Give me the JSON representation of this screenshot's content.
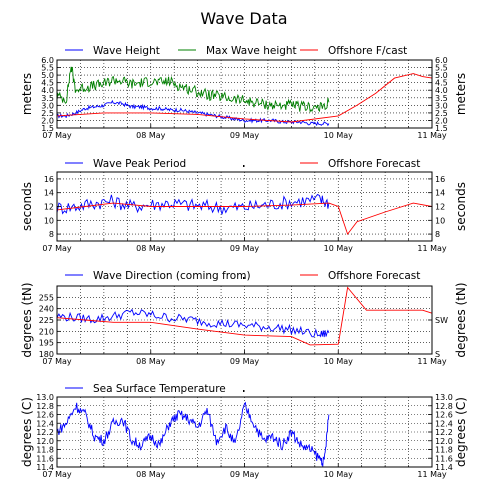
{
  "figure_title": "Wave Data",
  "chart_data": [
    {
      "type": "line",
      "xlabel": "",
      "ylabel": "meters",
      "ylabel_right": "meters",
      "xlim": [
        0,
        4
      ],
      "x_ticks": [
        {
          "v": 0,
          "label": "07 May"
        },
        {
          "v": 1,
          "label": "08 May"
        },
        {
          "v": 2,
          "label": "09 May"
        },
        {
          "v": 3,
          "label": "10 May"
        },
        {
          "v": 4,
          "label": "11 May"
        }
      ],
      "ylim": [
        1.5,
        6.0
      ],
      "y_ticks": [
        {
          "v": 1.5,
          "label": "1.5"
        },
        {
          "v": 2.0,
          "label": "2.0"
        },
        {
          "v": 2.5,
          "label": "2.5"
        },
        {
          "v": 3.0,
          "label": "3.0"
        },
        {
          "v": 3.5,
          "label": "3.5"
        },
        {
          "v": 4.0,
          "label": "4.0"
        },
        {
          "v": 4.5,
          "label": "4.5"
        },
        {
          "v": 5.0,
          "label": "5.0"
        },
        {
          "v": 5.5,
          "label": "5.5"
        },
        {
          "v": 6.0,
          "label": "6.0"
        }
      ],
      "y_ticks_right": [
        {
          "v": 1.5,
          "label": "1.5"
        },
        {
          "v": 2.0,
          "label": "2.0"
        },
        {
          "v": 2.5,
          "label": "2.5"
        },
        {
          "v": 3.0,
          "label": "3.0"
        },
        {
          "v": 3.5,
          "label": "3.5"
        },
        {
          "v": 4.0,
          "label": "4.0"
        },
        {
          "v": 4.5,
          "label": "4.5"
        },
        {
          "v": 5.0,
          "label": "5.0"
        },
        {
          "v": 5.5,
          "label": "5.5"
        },
        {
          "v": 6.0,
          "label": "6.0"
        }
      ],
      "grid": true,
      "legend": "top",
      "series": [
        {
          "name": "Wave Height",
          "color": "#0000ff",
          "x": [
            0,
            0.1,
            0.2,
            0.3,
            0.4,
            0.5,
            0.6,
            0.7,
            0.8,
            0.9,
            1.0,
            1.1,
            1.2,
            1.3,
            1.4,
            1.5,
            1.6,
            1.7,
            1.8,
            1.9,
            2.0,
            2.1,
            2.2,
            2.3,
            2.4,
            2.5,
            2.6,
            2.7,
            2.8,
            2.9
          ],
          "y": [
            2.3,
            2.3,
            2.5,
            2.8,
            2.9,
            3.0,
            3.2,
            3.1,
            2.9,
            2.9,
            2.8,
            2.8,
            2.7,
            2.7,
            2.6,
            2.5,
            2.4,
            2.3,
            2.2,
            2.1,
            2.0,
            2.0,
            2.0,
            2.0,
            1.9,
            1.9,
            1.9,
            1.8,
            1.8,
            1.8
          ],
          "noise": 0.12
        },
        {
          "name": "Max Wave height",
          "color": "#008000",
          "x": [
            0,
            0.1,
            0.15,
            0.2,
            0.3,
            0.4,
            0.5,
            0.6,
            0.7,
            0.8,
            0.9,
            1.0,
            1.1,
            1.2,
            1.3,
            1.4,
            1.5,
            1.6,
            1.7,
            1.8,
            1.9,
            2.0,
            2.1,
            2.2,
            2.3,
            2.4,
            2.5,
            2.6,
            2.7,
            2.8,
            2.9
          ],
          "y": [
            3.6,
            3.4,
            5.6,
            4.0,
            4.2,
            4.3,
            4.4,
            4.7,
            4.6,
            4.4,
            4.5,
            4.6,
            4.5,
            4.6,
            4.3,
            4.1,
            3.9,
            3.7,
            3.6,
            3.5,
            3.4,
            3.3,
            3.2,
            3.1,
            3.0,
            3.0,
            3.0,
            2.9,
            2.9,
            2.8,
            3.2
          ],
          "noise": 0.35
        },
        {
          "name": "Offshore F/cast",
          "color": "#ff0000",
          "x": [
            0,
            0.5,
            1.0,
            1.5,
            2.0,
            2.5,
            3.0,
            3.2,
            3.4,
            3.6,
            3.8,
            3.9,
            4.0
          ],
          "y": [
            2.3,
            2.5,
            2.5,
            2.4,
            2.1,
            1.9,
            2.3,
            3.0,
            3.8,
            4.8,
            5.1,
            4.9,
            4.8
          ],
          "noise": 0
        }
      ]
    },
    {
      "type": "line",
      "xlabel": "",
      "ylabel": "seconds",
      "ylabel_right": "seconds",
      "xlim": [
        0,
        4
      ],
      "x_ticks": [
        {
          "v": 0,
          "label": "07 May"
        },
        {
          "v": 1,
          "label": "08 May"
        },
        {
          "v": 2,
          "label": "09 May"
        },
        {
          "v": 3,
          "label": "10 May"
        },
        {
          "v": 4,
          "label": "11 May"
        }
      ],
      "ylim": [
        7,
        17
      ],
      "y_ticks": [
        {
          "v": 8,
          "label": "8"
        },
        {
          "v": 10,
          "label": "10"
        },
        {
          "v": 12,
          "label": "12"
        },
        {
          "v": 14,
          "label": "14"
        },
        {
          "v": 16,
          "label": "16"
        }
      ],
      "y_ticks_right": [
        {
          "v": 8,
          "label": "8"
        },
        {
          "v": 10,
          "label": "10"
        },
        {
          "v": 12,
          "label": "12"
        },
        {
          "v": 14,
          "label": "14"
        },
        {
          "v": 16,
          "label": "16"
        }
      ],
      "grid": true,
      "legend": "top",
      "series": [
        {
          "name": "Wave Peak Period",
          "color": "#0000ff",
          "x": [
            0,
            0.2,
            0.4,
            0.6,
            0.8,
            1.0,
            1.2,
            1.4,
            1.6,
            1.8,
            2.0,
            2.2,
            2.4,
            2.6,
            2.8,
            2.9
          ],
          "y": [
            11.8,
            12.0,
            12.5,
            12.8,
            12.0,
            12.3,
            12.5,
            12.2,
            12.0,
            11.8,
            11.9,
            12.2,
            12.5,
            12.8,
            13.0,
            12.5
          ],
          "noise": 1.0
        },
        {
          "name": "",
          "color": "#000000",
          "x": [],
          "y": [],
          "noise": 0
        },
        {
          "name": "Offshore Forecast",
          "color": "#ff0000",
          "x": [
            0,
            0.3,
            0.6,
            1.0,
            1.5,
            2.0,
            2.5,
            2.9,
            3.0,
            3.1,
            3.2,
            3.5,
            3.8,
            4.0
          ],
          "y": [
            11.5,
            12.0,
            12.5,
            12.0,
            12.0,
            12.0,
            12.2,
            12.5,
            12.0,
            8.0,
            9.8,
            11.2,
            12.5,
            12.0
          ],
          "noise": 0
        }
      ]
    },
    {
      "type": "line",
      "xlabel": "",
      "ylabel": "degrees (tN)",
      "ylabel_right": "degrees (tN)",
      "xlim": [
        0,
        4
      ],
      "x_ticks": [
        {
          "v": 0,
          "label": "07 May"
        },
        {
          "v": 1,
          "label": "08 May"
        },
        {
          "v": 2,
          "label": "09 May"
        },
        {
          "v": 3,
          "label": "10 May"
        },
        {
          "v": 4,
          "label": "11 May"
        }
      ],
      "ylim": [
        180,
        270
      ],
      "y_ticks": [
        {
          "v": 180,
          "label": "180"
        },
        {
          "v": 195,
          "label": "195"
        },
        {
          "v": 210,
          "label": "210"
        },
        {
          "v": 225,
          "label": "225"
        },
        {
          "v": 240,
          "label": "240"
        },
        {
          "v": 255,
          "label": "255"
        }
      ],
      "y_ticks_right": [
        {
          "v": 225,
          "label": "SW"
        },
        {
          "v": 180,
          "label": "S"
        }
      ],
      "grid": true,
      "legend": "top",
      "series": [
        {
          "name": "Wave Direction (coming from)",
          "color": "#0000ff",
          "x": [
            0,
            0.2,
            0.4,
            0.6,
            0.8,
            1.0,
            1.2,
            1.4,
            1.6,
            1.8,
            2.0,
            2.2,
            2.4,
            2.6,
            2.8,
            2.9
          ],
          "y": [
            230,
            228,
            226,
            230,
            235,
            232,
            228,
            226,
            222,
            220,
            218,
            216,
            214,
            210,
            205,
            208
          ],
          "noise": 6
        },
        {
          "name": "",
          "color": "#000000",
          "x": [],
          "y": [],
          "noise": 0
        },
        {
          "name": "Offshore Forecast",
          "color": "#ff0000",
          "x": [
            0,
            0.3,
            0.6,
            1.0,
            1.5,
            2.0,
            2.5,
            2.7,
            3.0,
            3.1,
            3.3,
            3.7,
            3.9,
            4.0
          ],
          "y": [
            228,
            225,
            222,
            222,
            213,
            205,
            203,
            192,
            193,
            268,
            238,
            238,
            238,
            234
          ],
          "noise": 0
        }
      ]
    },
    {
      "type": "line",
      "xlabel": "",
      "ylabel": "degrees (C)",
      "ylabel_right": "degrees (C)",
      "xlim": [
        0,
        4
      ],
      "x_ticks": [
        {
          "v": 0,
          "label": "07 May"
        },
        {
          "v": 1,
          "label": "08 May"
        },
        {
          "v": 2,
          "label": "09 May"
        },
        {
          "v": 3,
          "label": "10 May"
        },
        {
          "v": 4,
          "label": "11 May"
        }
      ],
      "ylim": [
        11.4,
        13.0
      ],
      "y_ticks": [
        {
          "v": 11.4,
          "label": "11.4"
        },
        {
          "v": 11.6,
          "label": "11.6"
        },
        {
          "v": 11.8,
          "label": "11.8"
        },
        {
          "v": 12.0,
          "label": "12.0"
        },
        {
          "v": 12.2,
          "label": "12.2"
        },
        {
          "v": 12.4,
          "label": "12.4"
        },
        {
          "v": 12.6,
          "label": "12.6"
        },
        {
          "v": 12.8,
          "label": "12.8"
        },
        {
          "v": 13.0,
          "label": "13.0"
        }
      ],
      "y_ticks_right": [
        {
          "v": 11.4,
          "label": "11.4"
        },
        {
          "v": 11.6,
          "label": "11.6"
        },
        {
          "v": 11.8,
          "label": "11.8"
        },
        {
          "v": 12.0,
          "label": "12.0"
        },
        {
          "v": 12.2,
          "label": "12.2"
        },
        {
          "v": 12.4,
          "label": "12.4"
        },
        {
          "v": 12.6,
          "label": "12.6"
        },
        {
          "v": 12.8,
          "label": "12.8"
        },
        {
          "v": 13.0,
          "label": "13.0"
        }
      ],
      "grid": true,
      "legend": "top",
      "series": [
        {
          "name": "Sea Surface Temperature",
          "color": "#0000ff",
          "x": [
            0,
            0.1,
            0.2,
            0.3,
            0.4,
            0.5,
            0.6,
            0.7,
            0.8,
            0.9,
            1.0,
            1.1,
            1.2,
            1.3,
            1.4,
            1.5,
            1.6,
            1.7,
            1.8,
            1.9,
            2.0,
            2.1,
            2.2,
            2.3,
            2.4,
            2.5,
            2.6,
            2.7,
            2.8,
            2.85,
            2.9
          ],
          "y": [
            12.2,
            12.4,
            12.8,
            12.6,
            12.1,
            12.0,
            12.4,
            12.5,
            12.0,
            11.9,
            12.1,
            11.9,
            12.4,
            12.6,
            12.5,
            12.3,
            12.7,
            12.0,
            12.3,
            11.9,
            12.8,
            12.4,
            12.0,
            12.1,
            11.9,
            12.2,
            11.9,
            11.8,
            11.6,
            11.5,
            12.6
          ],
          "noise": 0.12
        },
        {
          "name": "",
          "color": "#000000",
          "x": [],
          "y": [],
          "noise": 0
        }
      ]
    }
  ]
}
